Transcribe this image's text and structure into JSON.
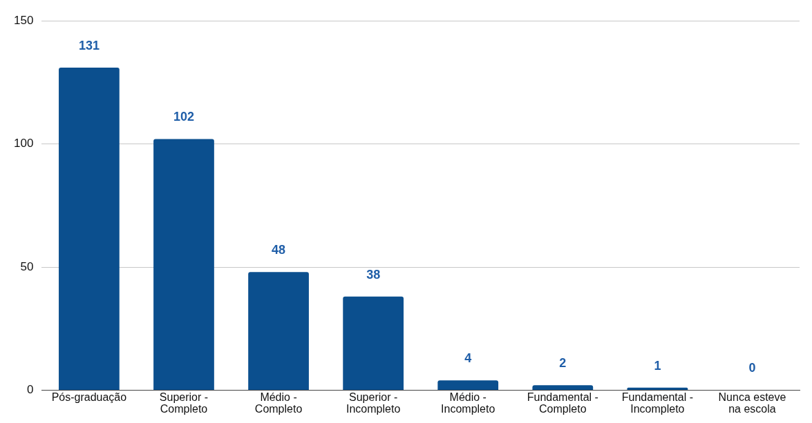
{
  "chart_data": {
    "type": "bar",
    "categories": [
      "Pós-graduação",
      "Superior - Completo",
      "Médio - Completo",
      "Superior - Incompleto",
      "Médio - Incompleto",
      "Fundamental - Completo",
      "Fundamental - Incompleto",
      "Nunca esteve na escola"
    ],
    "values": [
      131,
      102,
      48,
      38,
      4,
      2,
      1,
      0
    ],
    "color": "#0b4f8e",
    "ylim": [
      0,
      150
    ],
    "yticks": [
      0,
      50,
      100,
      150
    ],
    "grid": "y",
    "data_labels": true
  }
}
